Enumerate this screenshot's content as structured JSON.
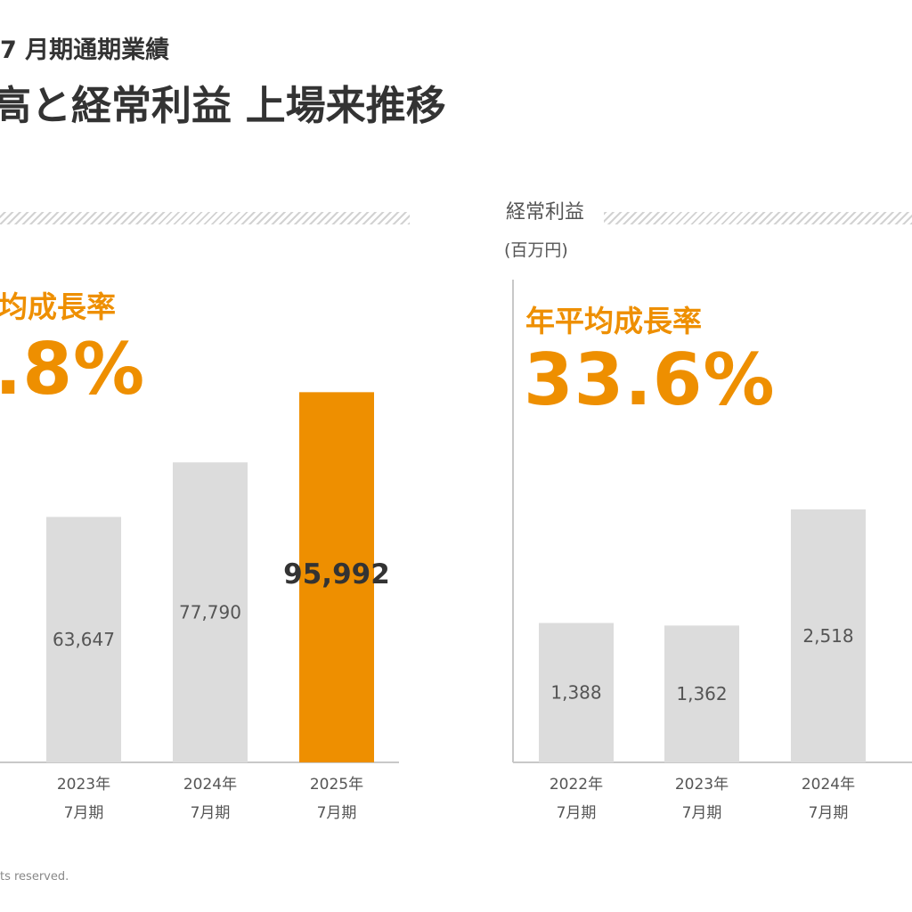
{
  "header": {
    "subtitle": "7 月期通期業績",
    "title": "高と経常利益 上場来推移"
  },
  "footer": {
    "text": "ts reserved."
  },
  "colors": {
    "accent": "#ee8f00",
    "bar": "#dcdcdc",
    "axis": "#c8c8c8"
  },
  "left_panel": {
    "cagr_label": "均成長率",
    "cagr_value": ".8%"
  },
  "right_panel": {
    "title": "経常利益",
    "unit": "(百万円)",
    "cagr_label": "年平均成長率",
    "cagr_value": "33.6%"
  },
  "chart_data": [
    {
      "type": "bar",
      "categories": [
        [
          "2023年",
          "7月期"
        ],
        [
          "2024年",
          "7月期"
        ],
        [
          "2025年",
          "7月期"
        ]
      ],
      "values": [
        63647,
        77790,
        95992
      ],
      "labels": [
        "63,647",
        "77,790",
        "95,992"
      ],
      "highlight_index": 2,
      "ylim": [
        0,
        100000
      ]
    },
    {
      "type": "bar",
      "categories": [
        [
          "2022年",
          "7月期"
        ],
        [
          "2023年",
          "7月期"
        ],
        [
          "2024年",
          "7月期"
        ]
      ],
      "values": [
        1388,
        1362,
        2518
      ],
      "labels": [
        "1,388",
        "1,362",
        "2,518"
      ],
      "highlight_index": -1,
      "ylim": [
        0,
        3360
      ]
    }
  ]
}
